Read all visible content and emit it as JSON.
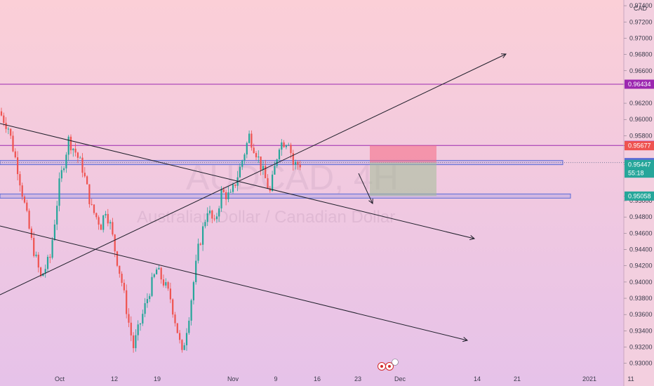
{
  "chart_data": {
    "type": "candlestick",
    "symbol": "AUDCAD, 4H",
    "instrument": "Australian Dollar / Canadian Dollar",
    "currency": "CAD",
    "y_ticks": [
      "0.97400",
      "0.97200",
      "0.97000",
      "0.96800",
      "0.96600",
      "0.96434",
      "0.96200",
      "0.96000",
      "0.95800",
      "0.95681",
      "0.95677",
      "0.95470",
      "0.95447",
      "0.95058",
      "0.95000",
      "0.94800",
      "0.94600",
      "0.94400",
      "0.94200",
      "0.94000",
      "0.93800",
      "0.93600",
      "0.93400",
      "0.93200",
      "0.93000"
    ],
    "ylim": [
      0.9298,
      0.9747
    ],
    "x_ticks": [
      "Oct",
      "12",
      "19",
      "Nov",
      "9",
      "16",
      "23",
      "Dec",
      "14",
      "21",
      "2021",
      "11"
    ],
    "price_tags": [
      {
        "label": "0.96434",
        "value": 0.96434,
        "color": "#9c27b0"
      },
      {
        "label": "0.95681",
        "value": 0.95681,
        "color": "#9c27b0"
      },
      {
        "label": "0.95677",
        "value": 0.95677,
        "color": "#ef5350"
      },
      {
        "label": "0.95470",
        "value": 0.9547,
        "color": "#5b6bd6"
      },
      {
        "label": "0.95447",
        "value": 0.95447,
        "color": "#26a69a"
      },
      {
        "label": "55:18",
        "value": 0.9534,
        "color": "#26a69a"
      },
      {
        "label": "0.95058",
        "value": 0.95058,
        "color": "#26a69a"
      }
    ],
    "horizontal_levels": [
      0.96434,
      0.95681
    ],
    "zones": [
      0.9547,
      0.95058
    ],
    "trendlines": 4,
    "position_box": {
      "entry": 0.9547,
      "target": 0.95058,
      "stop": 0.95681
    },
    "candles_shown": 130,
    "seed": 7,
    "path_points": [
      [
        0,
        0.961
      ],
      [
        4,
        0.959
      ],
      [
        8,
        0.954
      ],
      [
        14,
        0.945
      ],
      [
        18,
        0.9405
      ],
      [
        22,
        0.943
      ],
      [
        26,
        0.952
      ],
      [
        30,
        0.9575
      ],
      [
        33,
        0.956
      ],
      [
        36,
        0.954
      ],
      [
        40,
        0.949
      ],
      [
        44,
        0.947
      ],
      [
        46,
        0.949
      ],
      [
        48,
        0.947
      ],
      [
        50,
        0.944
      ],
      [
        53,
        0.94
      ],
      [
        56,
        0.935
      ],
      [
        58,
        0.932
      ],
      [
        60,
        0.934
      ],
      [
        62,
        0.936
      ],
      [
        65,
        0.939
      ],
      [
        68,
        0.9415
      ],
      [
        71,
        0.94
      ],
      [
        74,
        0.938
      ],
      [
        77,
        0.934
      ],
      [
        79,
        0.931
      ],
      [
        82,
        0.936
      ],
      [
        86,
        0.944
      ],
      [
        90,
        0.949
      ],
      [
        93,
        0.947
      ],
      [
        96,
        0.951
      ],
      [
        100,
        0.9505
      ],
      [
        104,
        0.954
      ],
      [
        108,
        0.958
      ],
      [
        111,
        0.956
      ],
      [
        114,
        0.9535
      ],
      [
        117,
        0.951
      ],
      [
        121,
        0.957
      ],
      [
        125,
        0.9575
      ],
      [
        127,
        0.9545
      ],
      [
        130,
        0.9545
      ]
    ],
    "title": "AUDCAD, 4H",
    "chart_subtitle": "Australian Dollar / Canadian Dollar"
  }
}
